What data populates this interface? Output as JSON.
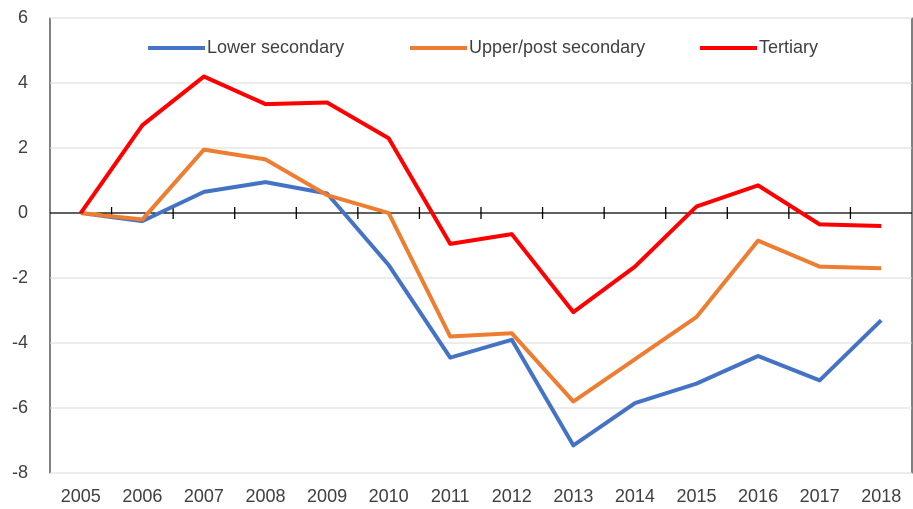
{
  "chart_data": {
    "type": "line",
    "categories": [
      "2005",
      "2006",
      "2007",
      "2008",
      "2009",
      "2010",
      "2011",
      "2012",
      "2013",
      "2014",
      "2015",
      "2016",
      "2017",
      "2018"
    ],
    "series": [
      {
        "name": "Lower secondary",
        "color": "#4472c4",
        "values": [
          0,
          -0.25,
          0.65,
          0.95,
          0.6,
          -1.6,
          -4.45,
          -3.9,
          -7.15,
          -5.85,
          -5.25,
          -4.4,
          -5.15,
          -3.3
        ]
      },
      {
        "name": "Upper/post secondary",
        "color": "#ed7d31",
        "values": [
          0,
          -0.2,
          1.95,
          1.65,
          0.55,
          0.0,
          -3.8,
          -3.7,
          -5.8,
          -4.5,
          -3.2,
          -0.85,
          -1.65,
          -1.7
        ]
      },
      {
        "name": "Tertiary",
        "color": "#ff0000",
        "values": [
          0,
          2.7,
          4.2,
          3.35,
          3.4,
          2.3,
          -0.95,
          -0.65,
          -3.05,
          -1.65,
          0.2,
          0.85,
          -0.35,
          -0.4
        ]
      }
    ],
    "ylim": [
      -8,
      6
    ],
    "yticks": [
      -8,
      -6,
      -4,
      -2,
      0,
      2,
      4,
      6
    ],
    "grid": true,
    "legend": "top"
  }
}
